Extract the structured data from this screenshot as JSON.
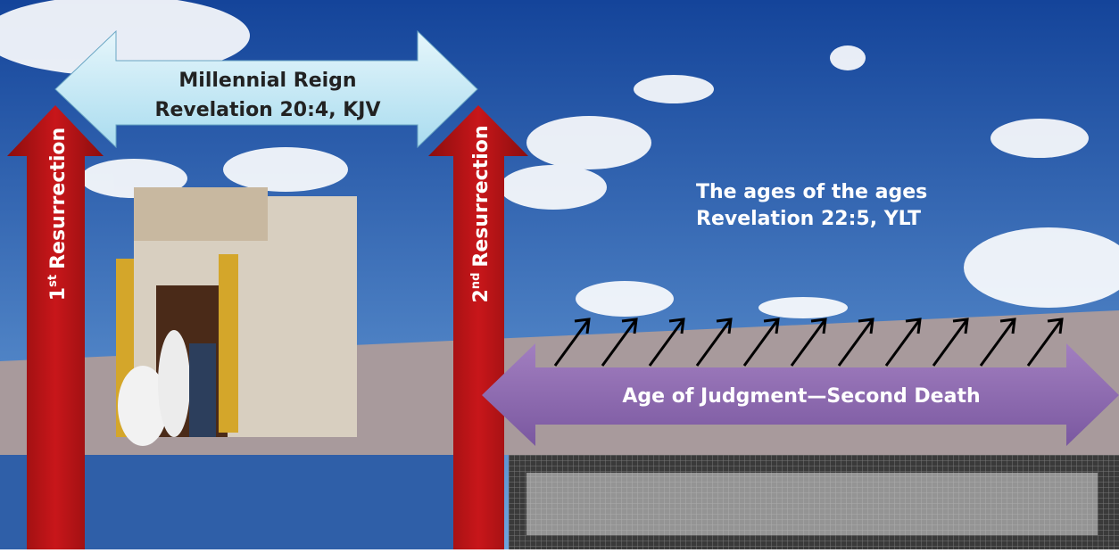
{
  "top_arrow": {
    "line1": "Millennial Reign",
    "line2": "Revelation 20:4, KJV"
  },
  "left_arrow": {
    "number": "1",
    "suffix": "st",
    "word": "Resurrection"
  },
  "right_arrow": {
    "number": "2",
    "suffix": "nd",
    "word": "Resurrection"
  },
  "sky_text": {
    "line1": "The ages of the ages",
    "line2": "Revelation 22:5, YLT"
  },
  "bottom_arrow": {
    "label": "Age of Judgment—Second Death"
  }
}
